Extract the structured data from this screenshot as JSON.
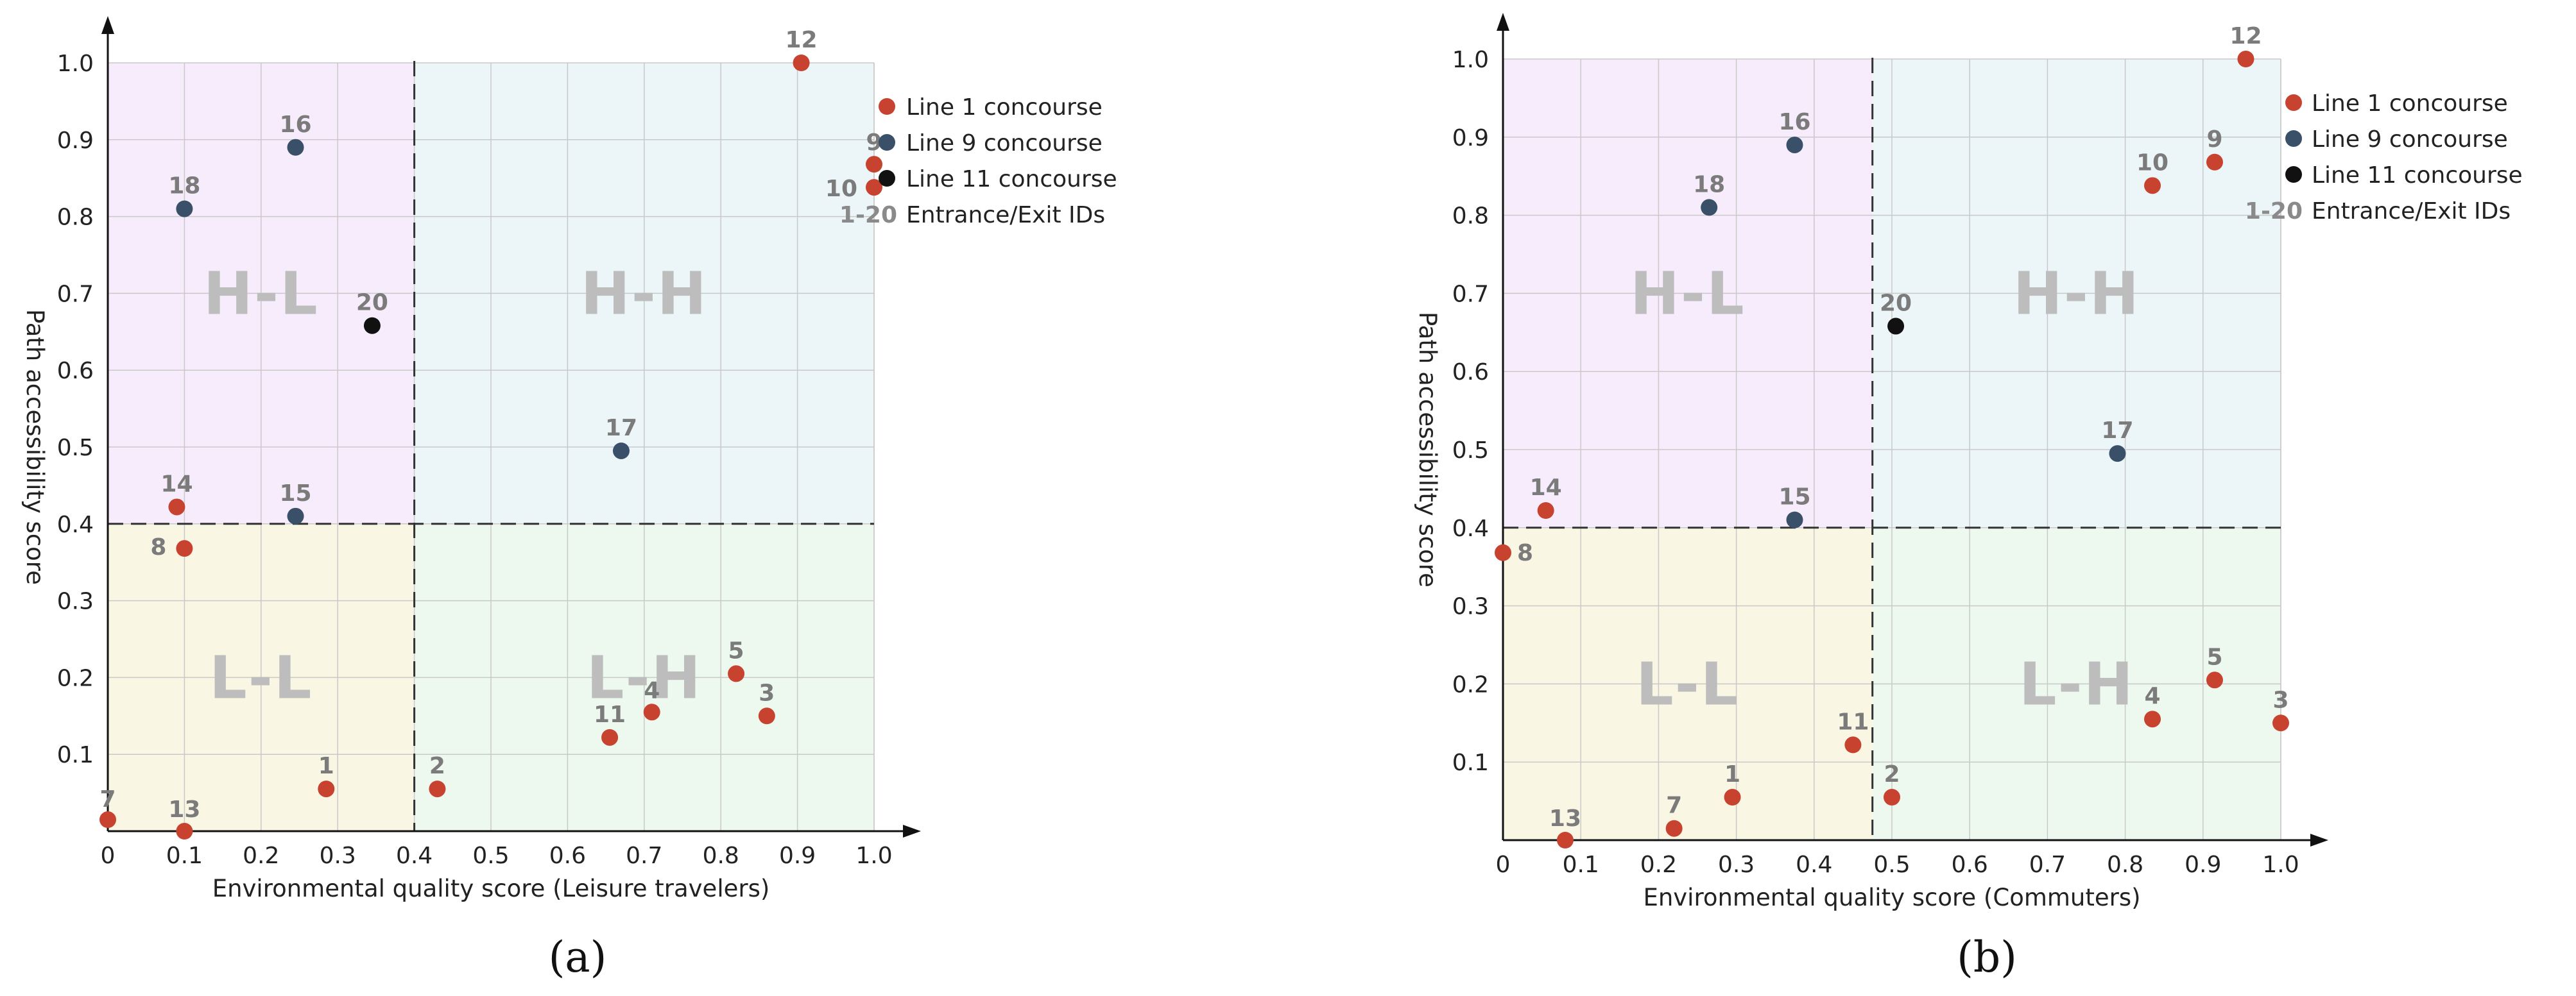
{
  "colors": {
    "line1": "#c8432f",
    "line9": "#3a5068",
    "line11": "#111111",
    "quadrant_HL": "#f6ecfb",
    "quadrant_HH": "#ecf5f8",
    "quadrant_LL": "#f9f6e3",
    "quadrant_LH": "#edf8ef"
  },
  "chart_data": [
    {
      "type": "scatter",
      "panel_label": "(a)",
      "xlabel": "Environmental quality score (Leisure travelers)",
      "ylabel": "Path accessibility score",
      "xlim": [
        0,
        1.0
      ],
      "ylim": [
        0,
        1.0
      ],
      "x_ticks": [
        "0",
        "0.1",
        "0.2",
        "0.3",
        "0.4",
        "0.5",
        "0.6",
        "0.7",
        "0.8",
        "0.9",
        "1.0"
      ],
      "y_ticks": [
        "0.1",
        "0.2",
        "0.3",
        "0.4",
        "0.5",
        "0.6",
        "0.7",
        "0.8",
        "0.9",
        "1.0"
      ],
      "x_threshold": 0.4,
      "y_threshold": 0.4,
      "quadrants": {
        "HL": "H-L",
        "HH": "H-H",
        "LL": "L-L",
        "LH": "L-H"
      },
      "legend": {
        "items": [
          "Line 1 concourse",
          "Line 9 concourse",
          "Line 11 concourse"
        ],
        "id_key": "1-20",
        "id_label": "Entrance/Exit IDs"
      },
      "points": [
        {
          "id": "1",
          "series": "line1",
          "x": 0.285,
          "y": 0.055
        },
        {
          "id": "2",
          "series": "line1",
          "x": 0.43,
          "y": 0.055
        },
        {
          "id": "3",
          "series": "line1",
          "x": 0.86,
          "y": 0.15
        },
        {
          "id": "4",
          "series": "line1",
          "x": 0.71,
          "y": 0.155
        },
        {
          "id": "5",
          "series": "line1",
          "x": 0.82,
          "y": 0.205
        },
        {
          "id": "7",
          "series": "line1",
          "x": 0.0,
          "y": 0.015
        },
        {
          "id": "8",
          "series": "line1",
          "x": 0.1,
          "y": 0.368
        },
        {
          "id": "9",
          "series": "line1",
          "x": 1.0,
          "y": 0.868
        },
        {
          "id": "10",
          "series": "line1",
          "x": 1.0,
          "y": 0.838
        },
        {
          "id": "11",
          "series": "line1",
          "x": 0.655,
          "y": 0.122
        },
        {
          "id": "12",
          "series": "line1",
          "x": 0.905,
          "y": 1.0
        },
        {
          "id": "13",
          "series": "line1",
          "x": 0.1,
          "y": 0.0
        },
        {
          "id": "14",
          "series": "line1",
          "x": 0.09,
          "y": 0.422
        },
        {
          "id": "15",
          "series": "line9",
          "x": 0.245,
          "y": 0.41
        },
        {
          "id": "16",
          "series": "line9",
          "x": 0.245,
          "y": 0.89
        },
        {
          "id": "17",
          "series": "line9",
          "x": 0.67,
          "y": 0.495
        },
        {
          "id": "18",
          "series": "line9",
          "x": 0.1,
          "y": 0.81
        },
        {
          "id": "20",
          "series": "line11",
          "x": 0.345,
          "y": 0.658
        }
      ]
    },
    {
      "type": "scatter",
      "panel_label": "(b)",
      "xlabel": "Environmental quality score (Commuters)",
      "ylabel": "Path accessibility score",
      "xlim": [
        0,
        1.0
      ],
      "ylim": [
        0,
        1.0
      ],
      "x_ticks": [
        "0",
        "0.1",
        "0.2",
        "0.3",
        "0.4",
        "0.5",
        "0.6",
        "0.7",
        "0.8",
        "0.9",
        "1.0"
      ],
      "y_ticks": [
        "0.1",
        "0.2",
        "0.3",
        "0.4",
        "0.5",
        "0.6",
        "0.7",
        "0.8",
        "0.9",
        "1.0"
      ],
      "x_threshold": 0.475,
      "y_threshold": 0.4,
      "quadrants": {
        "HL": "H-L",
        "HH": "H-H",
        "LL": "L-L",
        "LH": "L-H"
      },
      "legend": {
        "items": [
          "Line 1 concourse",
          "Line 9 concourse",
          "Line 11 concourse"
        ],
        "id_key": "1-20",
        "id_label": "Entrance/Exit IDs"
      },
      "points": [
        {
          "id": "1",
          "series": "line1",
          "x": 0.295,
          "y": 0.055
        },
        {
          "id": "2",
          "series": "line1",
          "x": 0.5,
          "y": 0.055
        },
        {
          "id": "3",
          "series": "line1",
          "x": 1.0,
          "y": 0.15
        },
        {
          "id": "4",
          "series": "line1",
          "x": 0.835,
          "y": 0.155
        },
        {
          "id": "5",
          "series": "line1",
          "x": 0.915,
          "y": 0.205
        },
        {
          "id": "7",
          "series": "line1",
          "x": 0.22,
          "y": 0.015
        },
        {
          "id": "8",
          "series": "line1",
          "x": 0.0,
          "y": 0.368
        },
        {
          "id": "9",
          "series": "line1",
          "x": 0.915,
          "y": 0.868
        },
        {
          "id": "10",
          "series": "line1",
          "x": 0.835,
          "y": 0.838
        },
        {
          "id": "11",
          "series": "line1",
          "x": 0.45,
          "y": 0.122
        },
        {
          "id": "12",
          "series": "line1",
          "x": 0.955,
          "y": 1.0
        },
        {
          "id": "13",
          "series": "line1",
          "x": 0.08,
          "y": 0.0
        },
        {
          "id": "14",
          "series": "line1",
          "x": 0.055,
          "y": 0.422
        },
        {
          "id": "15",
          "series": "line9",
          "x": 0.375,
          "y": 0.41
        },
        {
          "id": "16",
          "series": "line9",
          "x": 0.375,
          "y": 0.89
        },
        {
          "id": "17",
          "series": "line9",
          "x": 0.79,
          "y": 0.495
        },
        {
          "id": "18",
          "series": "line9",
          "x": 0.265,
          "y": 0.81
        },
        {
          "id": "20",
          "series": "line11",
          "x": 0.505,
          "y": 0.658
        }
      ]
    }
  ]
}
